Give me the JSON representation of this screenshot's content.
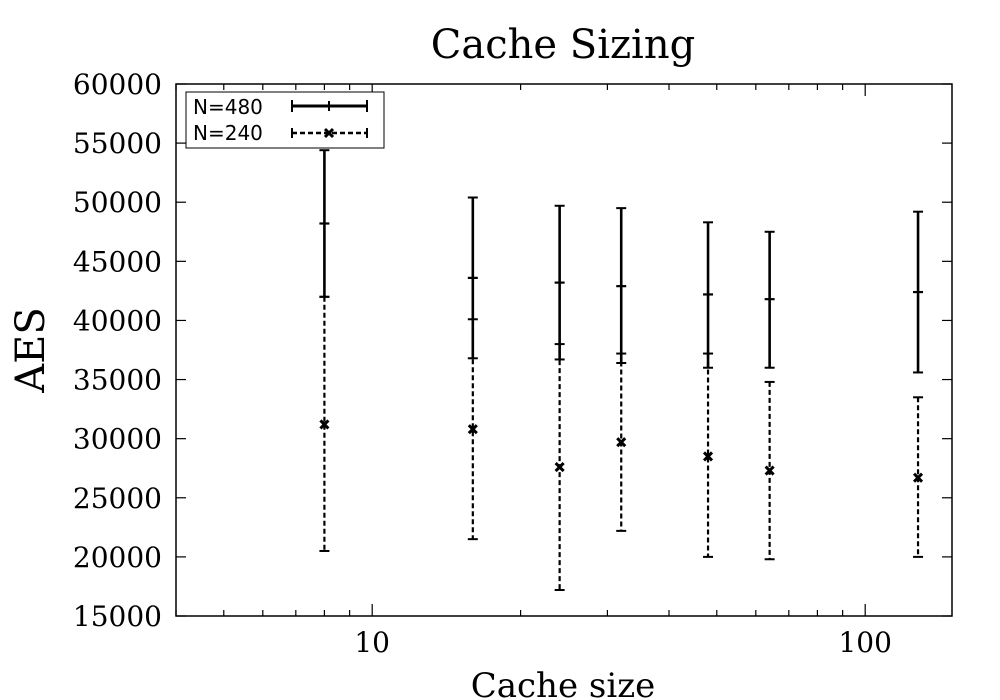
{
  "chart_data": {
    "type": "scatter",
    "title": "Cache Sizing",
    "xlabel": "Cache size",
    "ylabel": "AES",
    "x_scale": "log",
    "xlim": [
      4,
      150
    ],
    "ylim": [
      15000,
      60000
    ],
    "x_ticks": [
      10,
      100
    ],
    "x_tick_labels": [
      "10",
      "100"
    ],
    "y_ticks": [
      15000,
      20000,
      25000,
      30000,
      35000,
      40000,
      45000,
      50000,
      55000,
      60000
    ],
    "y_tick_labels": [
      "15000",
      "20000",
      "25000",
      "30000",
      "35000",
      "40000",
      "45000",
      "50000",
      "55000",
      "60000"
    ],
    "grid": false,
    "legend": "top-left",
    "series": [
      {
        "name": "N=480",
        "style": "solid",
        "marker": "plus",
        "x": [
          8,
          16,
          24,
          32,
          48,
          64,
          128
        ],
        "y": [
          48200,
          43600,
          43200,
          42900,
          42200,
          41800,
          42400
        ],
        "err_low": [
          42000,
          36800,
          36700,
          36400,
          36000,
          36000,
          35600
        ],
        "err_high": [
          54400,
          50400,
          49700,
          49500,
          48300,
          47500,
          49200
        ]
      },
      {
        "name": "N=240",
        "style": "dashed",
        "marker": "cross",
        "x": [
          8,
          16,
          24,
          32,
          48,
          64,
          128
        ],
        "y": [
          31200,
          30800,
          27600,
          29700,
          28500,
          27300,
          26700
        ],
        "err_low": [
          20500,
          21500,
          17200,
          22200,
          20000,
          19800,
          20000
        ],
        "err_high": [
          42000,
          40100,
          38000,
          37200,
          37200,
          34800,
          33500
        ]
      }
    ]
  }
}
